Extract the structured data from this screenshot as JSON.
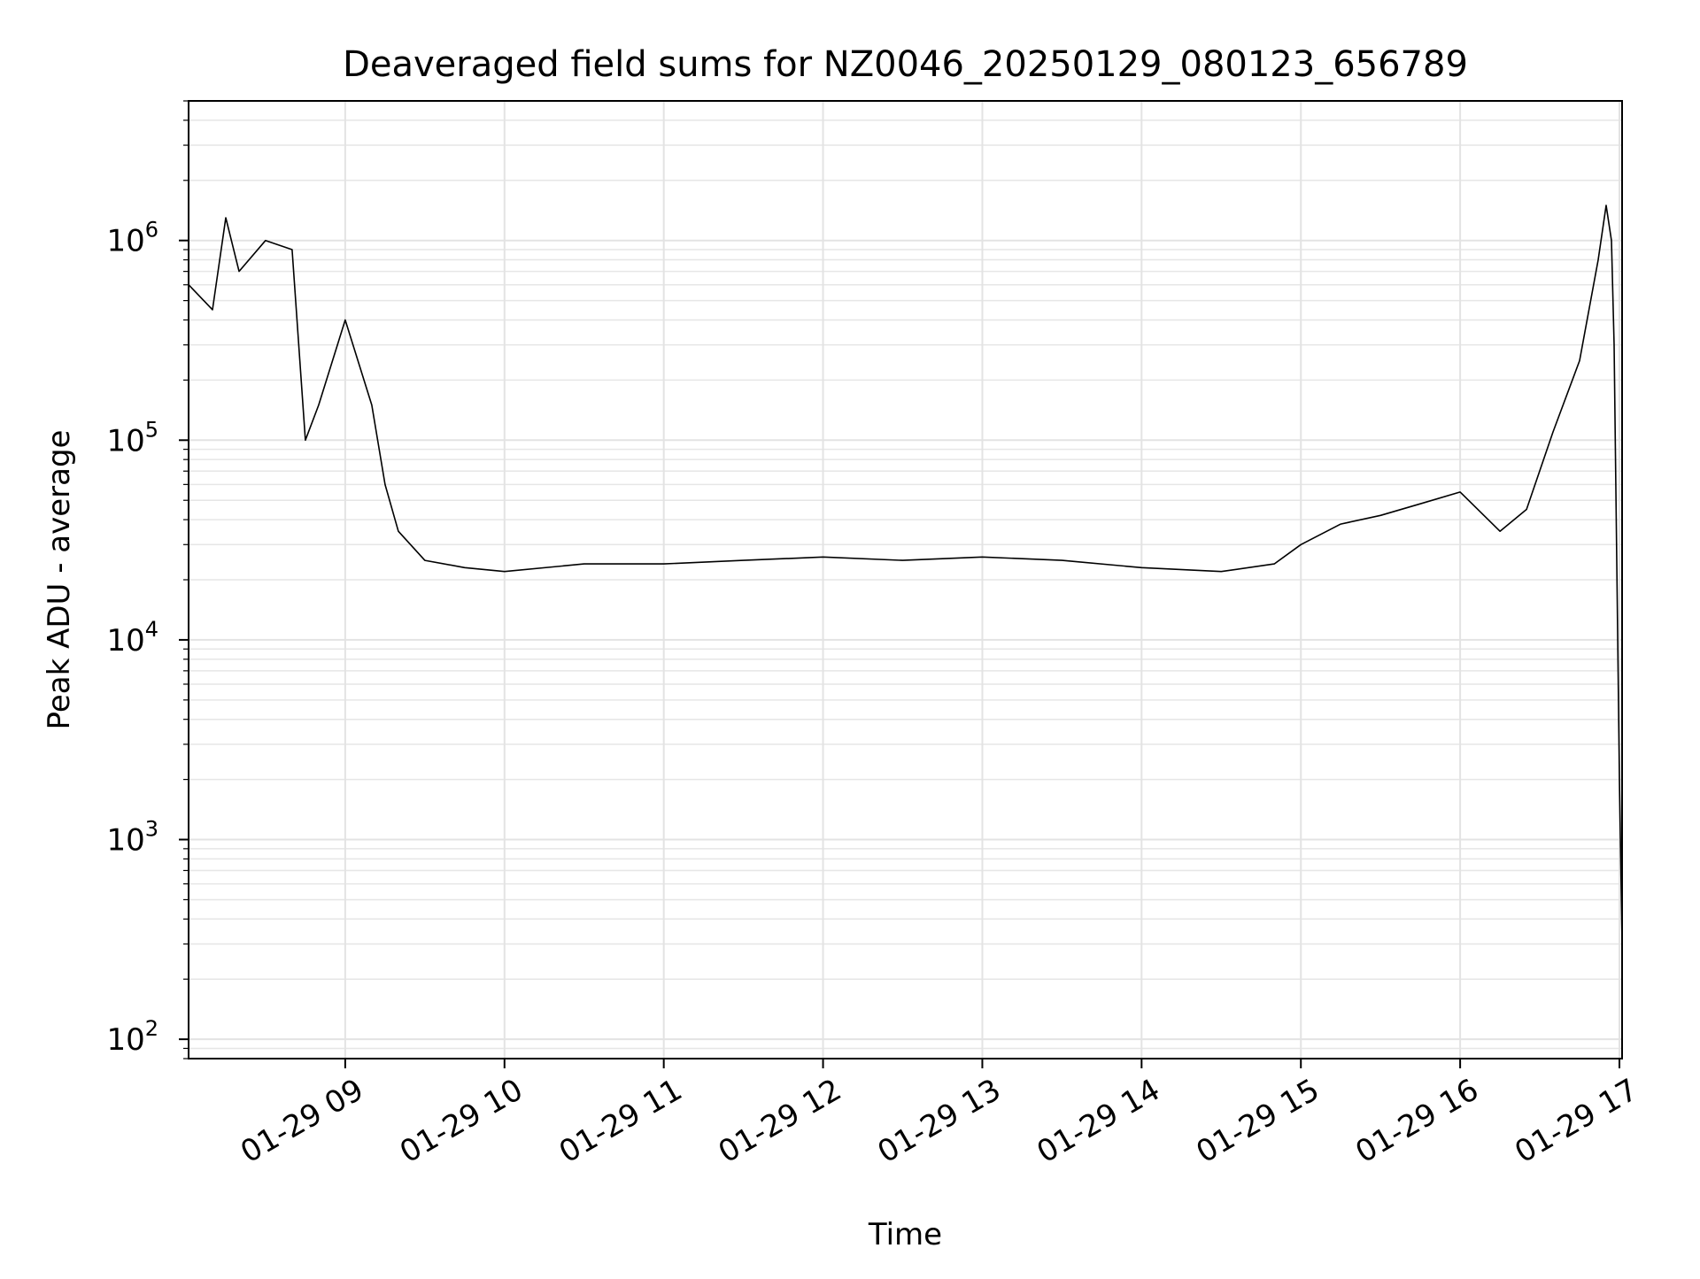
{
  "chart_data": {
    "type": "line",
    "title": "Deaveraged field sums for NZ0046_20250129_080123_656789",
    "xlabel": "Time",
    "ylabel": "Peak ADU - average",
    "yscale": "log",
    "ylim": [
      80,
      5000000
    ],
    "xlim": [
      "2025-01-29 08:01",
      "2025-01-29 17:01"
    ],
    "x_tick_labels": [
      "01-29 09",
      "01-29 10",
      "01-29 11",
      "01-29 12",
      "01-29 13",
      "01-29 14",
      "01-29 15",
      "01-29 16",
      "01-29 17"
    ],
    "x_tick_values": [
      "2025-01-29 09:00",
      "2025-01-29 10:00",
      "2025-01-29 11:00",
      "2025-01-29 12:00",
      "2025-01-29 13:00",
      "2025-01-29 14:00",
      "2025-01-29 15:00",
      "2025-01-29 16:00",
      "2025-01-29 17:00"
    ],
    "y_tick_labels": [
      {
        "base": "10",
        "exp": "2",
        "value": 100
      },
      {
        "base": "10",
        "exp": "3",
        "value": 1000
      },
      {
        "base": "10",
        "exp": "4",
        "value": 10000
      },
      {
        "base": "10",
        "exp": "5",
        "value": 100000
      },
      {
        "base": "10",
        "exp": "6",
        "value": 1000000
      }
    ],
    "grid": true,
    "line_color": "#000000",
    "series": [
      {
        "x": [
          "2025-01-29 08:01",
          "2025-01-29 08:10",
          "2025-01-29 08:15",
          "2025-01-29 08:20",
          "2025-01-29 08:30",
          "2025-01-29 08:40",
          "2025-01-29 08:45",
          "2025-01-29 08:50",
          "2025-01-29 09:00",
          "2025-01-29 09:10",
          "2025-01-29 09:15",
          "2025-01-29 09:20",
          "2025-01-29 09:30",
          "2025-01-29 09:45",
          "2025-01-29 10:00",
          "2025-01-29 10:30",
          "2025-01-29 11:00",
          "2025-01-29 11:30",
          "2025-01-29 12:00",
          "2025-01-29 12:30",
          "2025-01-29 13:00",
          "2025-01-29 13:30",
          "2025-01-29 14:00",
          "2025-01-29 14:30",
          "2025-01-29 14:50",
          "2025-01-29 15:00",
          "2025-01-29 15:15",
          "2025-01-29 15:30",
          "2025-01-29 15:45",
          "2025-01-29 16:00",
          "2025-01-29 16:15",
          "2025-01-29 16:25",
          "2025-01-29 16:35",
          "2025-01-29 16:45",
          "2025-01-29 16:52",
          "2025-01-29 16:55",
          "2025-01-29 16:57",
          "2025-01-29 16:58",
          "2025-01-29 17:00",
          "2025-01-29 17:01"
        ],
        "y": [
          600000,
          450000,
          1300000,
          700000,
          1000000,
          900000,
          100000,
          150000,
          400000,
          150000,
          60000,
          35000,
          25000,
          23000,
          22000,
          24000,
          24000,
          25000,
          26000,
          25000,
          26000,
          25000,
          23000,
          22000,
          24000,
          30000,
          38000,
          42000,
          48000,
          55000,
          35000,
          45000,
          110000,
          250000,
          800000,
          1500000,
          1000000,
          300000,
          2000,
          300
        ]
      }
    ]
  }
}
